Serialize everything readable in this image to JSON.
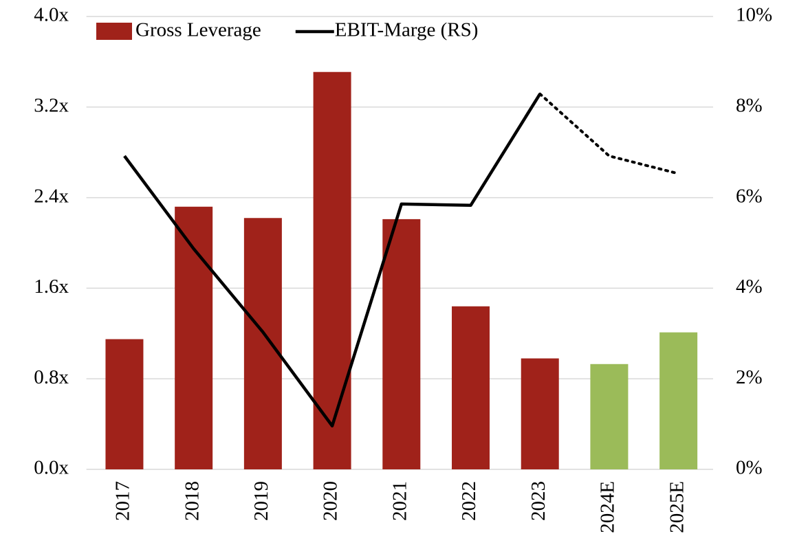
{
  "chart_data": {
    "type": "bar_line",
    "categories": [
      "2017",
      "2018",
      "2019",
      "2020",
      "2021",
      "2022",
      "2023",
      "2024E",
      "2025E"
    ],
    "series": [
      {
        "name": "Gross Leverage",
        "type": "bar",
        "color": "#a0221a",
        "colors": [
          "#a0221a",
          "#a0221a",
          "#a0221a",
          "#a0221a",
          "#a0221a",
          "#a0221a",
          "#a0221a",
          "#9bbb59",
          "#9bbb59"
        ],
        "values": [
          1.15,
          2.32,
          2.22,
          3.51,
          2.21,
          1.44,
          0.98,
          0.93,
          1.21
        ]
      },
      {
        "name": "EBIT-Marge (RS)",
        "type": "line",
        "axis": "y2",
        "color": "#000000",
        "dotted": [
          false,
          false,
          false,
          false,
          false,
          false,
          false,
          true,
          true
        ],
        "values": [
          6.92,
          4.87,
          3.03,
          0.96,
          5.86,
          5.83,
          8.29,
          6.92,
          6.53
        ]
      }
    ],
    "ylim": [
      0,
      4
    ],
    "yticks": [
      {
        "value": 0,
        "label": "0.0x"
      },
      {
        "value": 0.8,
        "label": "0.8x"
      },
      {
        "value": 1.6,
        "label": "1.6x"
      },
      {
        "value": 2.4,
        "label": "2.4x"
      },
      {
        "value": 3.2,
        "label": "3.2x"
      },
      {
        "value": 4,
        "label": "4.0x"
      }
    ],
    "y2lim": [
      0,
      10
    ],
    "y2ticks": [
      {
        "value": 0,
        "label": "0%"
      },
      {
        "value": 2,
        "label": "2%"
      },
      {
        "value": 4,
        "label": "4%"
      },
      {
        "value": 6,
        "label": "6%"
      },
      {
        "value": 8,
        "label": "8%"
      },
      {
        "value": 10,
        "label": "10%"
      }
    ],
    "grid": true,
    "legend": "top"
  }
}
